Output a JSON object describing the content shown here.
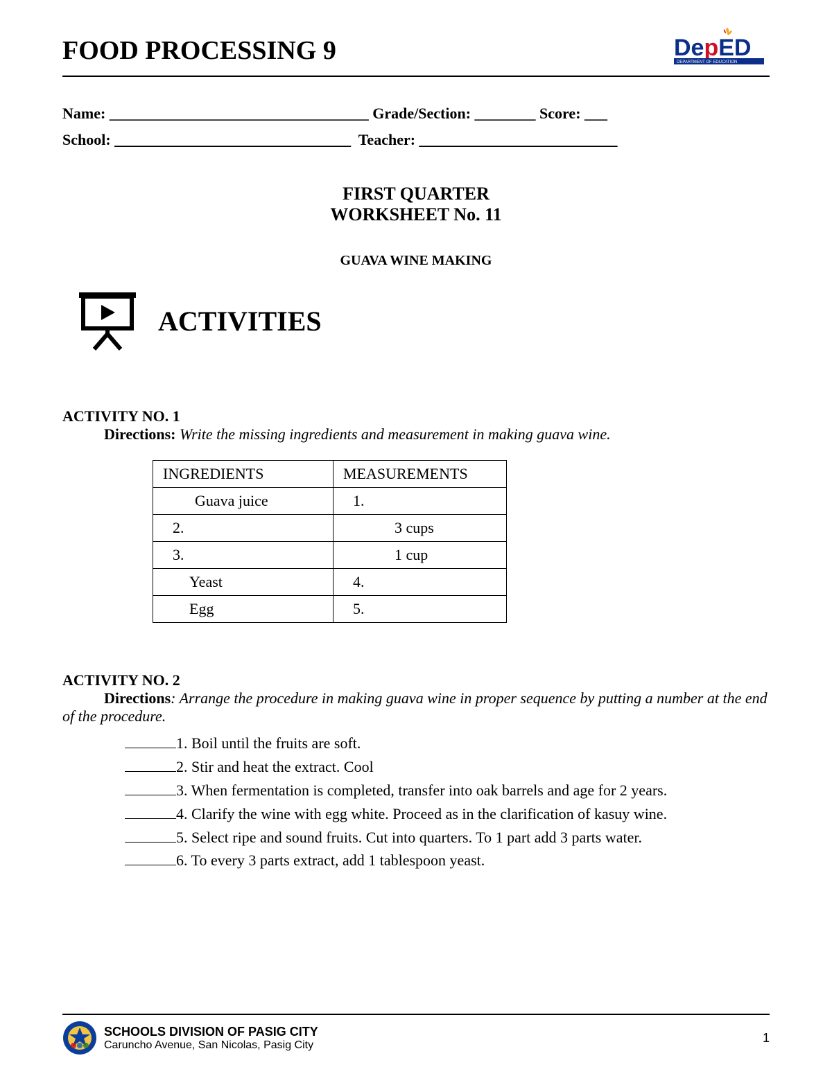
{
  "header": {
    "title": "FOOD PROCESSING 9",
    "logo": {
      "de": "De",
      "p": "p",
      "ed": "ED",
      "sub": "DEPARTMENT OF EDUCATION",
      "de_color": "#0a2e8a",
      "p_color": "#d01025",
      "ed_color": "#0a2e8a",
      "flame_color": "#f5a623"
    }
  },
  "form": {
    "line1": "Name: __________________________________ Grade/Section: ________ Score: ___",
    "line2": "School: _______________________________  Teacher: __________________________"
  },
  "title_block": {
    "quarter": "FIRST QUARTER",
    "worksheet": "WORKSHEET No. 11",
    "topic": "GUAVA WINE MAKING"
  },
  "activities_label": "ACTIVITIES",
  "activity1": {
    "heading": "ACTIVITY NO. 1",
    "directions_label": "Directions:",
    "directions_text": " Write the missing ingredients and measurement in making guava wine.",
    "table": {
      "columns": [
        "INGREDIENTS",
        "MEASUREMENTS"
      ],
      "rows": [
        [
          "Guava juice",
          "1."
        ],
        [
          "2.",
          "3 cups"
        ],
        [
          "3.",
          "1 cup"
        ],
        [
          "Yeast",
          "4."
        ],
        [
          "Egg",
          "5."
        ]
      ],
      "col1_indent": [
        60,
        24,
        24,
        50,
        50
      ],
      "col2_indent": [
        20,
        78,
        78,
        20,
        20
      ]
    }
  },
  "activity2": {
    "heading": "ACTIVITY NO. 2",
    "directions_label": "Directions",
    "directions_text": ": Arrange the procedure in making guava wine in proper sequence by putting a number at the end of the procedure.",
    "items": [
      "1. Boil until the fruits are soft.",
      "2. Stir and heat the extract. Cool",
      "3. When fermentation is completed, transfer into oak barrels and age for 2 years.",
      "4. Clarify the wine with egg white. Proceed as in the clarification of kasuy wine.",
      "5. Select ripe and sound fruits. Cut into quarters. To 1 part add 3 parts water.",
      "6. To every 3 parts extract, add 1 tablespoon yeast."
    ]
  },
  "footer": {
    "org": "SCHOOLS DIVISION OF PASIG CITY",
    "addr": "Caruncho Avenue, San Nicolas, Pasig City",
    "page": "1",
    "seal": {
      "outer": "#0a3e9a",
      "inner": "#f5c542"
    }
  }
}
